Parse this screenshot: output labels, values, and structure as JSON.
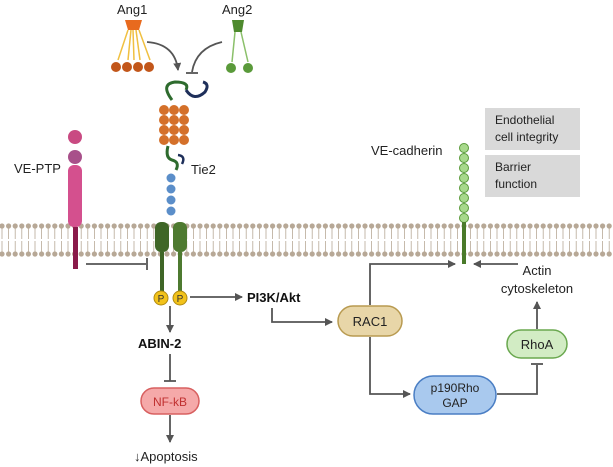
{
  "ligands": {
    "ang1": "Ang1",
    "ang2": "Ang2"
  },
  "receptors": {
    "tie2": "Tie2",
    "ve_ptp": "VE-PTP",
    "ve_cadherin": "VE-cadherin",
    "phospho_left": "P",
    "phospho_right": "P"
  },
  "nodes": {
    "pi3k_akt": "PI3K/Akt",
    "abin2": "ABIN-2",
    "nfkb": "NF-kB",
    "apoptosis": "↓Apoptosis",
    "rac1": "RAC1",
    "p190_line1": "p190Rho",
    "p190_line2": "GAP",
    "rhoa": "RhoA",
    "actin_line1": "Actin",
    "actin_line2": "cytoskeleton"
  },
  "outcomes": {
    "box1_line1": "Endothelial",
    "box1_line2": "cell integrity",
    "box2_line1": "Barrier",
    "box2_line2": "function"
  },
  "colors": {
    "ang1": "#e86a1e",
    "ang2": "#4e8a2e",
    "tie2_domain": "#e07b39",
    "tie2_tm": "#4a6b2a",
    "ve_ptp": "#c94a82",
    "ve_cad": "#7fbf5f",
    "membrane": "#b7a896",
    "phospho": "#f2c21a",
    "nfkb_fill": "#f5a9a9",
    "rac1_fill": "#e8d6a8",
    "p190_fill": "#a9c9ee",
    "rhoa_fill": "#d2ecc4",
    "outcome_box": "#d9d9d9",
    "arrow": "#555555"
  }
}
